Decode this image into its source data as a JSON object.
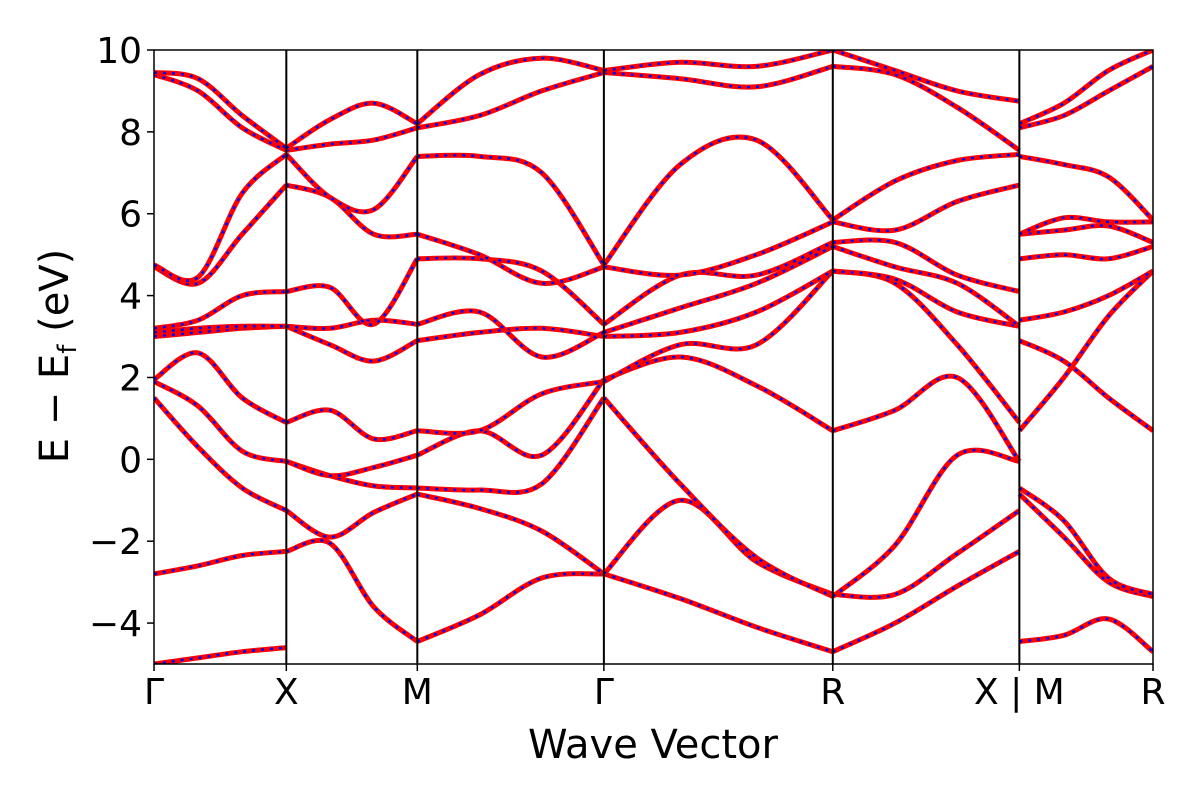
{
  "chart_data": {
    "type": "line",
    "title": "",
    "xlabel": "Wave Vector",
    "ylabel": {
      "prefix": "E − E",
      "subscript": "f",
      "suffix": " (eV)"
    },
    "ylim": [
      -5,
      10
    ],
    "yticks": [
      {
        "value": -4,
        "label": "−4"
      },
      {
        "value": -2,
        "label": "−2"
      },
      {
        "value": 0,
        "label": "0"
      },
      {
        "value": 2,
        "label": "2"
      },
      {
        "value": 4,
        "label": "4"
      },
      {
        "value": 6,
        "label": "6"
      },
      {
        "value": 8,
        "label": "8"
      },
      {
        "value": 10,
        "label": "10"
      }
    ],
    "k_range": [
      0,
      7.55
    ],
    "k_points": [
      {
        "label": "Γ",
        "k": 0.0
      },
      {
        "label": "X",
        "k": 1.0
      },
      {
        "label": "M",
        "k": 1.99
      },
      {
        "label": "Γ",
        "k": 3.4
      },
      {
        "label": "R",
        "k": 5.13
      },
      {
        "label": "X | M",
        "k": 6.54
      },
      {
        "label": "R",
        "k": 7.55
      }
    ],
    "grid": false,
    "legend": "none",
    "colors": {
      "series_a": "#ff0000",
      "series_b": "#0000ff",
      "kline": "#000000"
    },
    "segments": [
      {
        "k0": 0.0,
        "k1": 1.0,
        "bands": [
          [
            -5.0,
            -4.85,
            -4.7,
            -4.6
          ],
          [
            -2.8,
            -2.6,
            -2.35,
            -2.25
          ],
          [
            1.5,
            0.3,
            -0.7,
            -1.25
          ],
          [
            1.9,
            1.3,
            0.2,
            -0.05
          ],
          [
            1.95,
            2.6,
            1.5,
            0.9
          ],
          [
            3.0,
            3.1,
            3.2,
            3.25
          ],
          [
            3.1,
            3.2,
            3.25,
            3.25
          ],
          [
            3.2,
            3.4,
            4.0,
            4.1
          ],
          [
            4.7,
            4.3,
            5.5,
            6.7
          ],
          [
            4.75,
            4.45,
            6.5,
            7.45
          ],
          [
            9.4,
            9.0,
            8.1,
            7.55
          ],
          [
            9.45,
            9.3,
            8.4,
            7.6
          ]
        ]
      },
      {
        "k0": 1.0,
        "k1": 1.99,
        "bands": [
          [
            -2.25,
            -2.05,
            -3.6,
            -4.45
          ],
          [
            -1.25,
            -1.9,
            -1.3,
            -0.85
          ],
          [
            -0.05,
            -0.4,
            -0.65,
            -0.7
          ],
          [
            -0.05,
            -0.4,
            -0.2,
            0.1
          ],
          [
            0.9,
            1.2,
            0.5,
            0.7
          ],
          [
            3.25,
            2.8,
            2.4,
            2.9
          ],
          [
            3.25,
            3.2,
            3.4,
            3.3
          ],
          [
            4.1,
            4.2,
            3.3,
            4.9
          ],
          [
            6.7,
            6.4,
            5.5,
            5.5
          ],
          [
            7.45,
            6.4,
            6.1,
            7.4
          ],
          [
            7.55,
            7.7,
            7.8,
            8.1
          ],
          [
            7.6,
            8.3,
            8.7,
            8.2
          ]
        ]
      },
      {
        "k0": 1.99,
        "k1": 3.4,
        "bands": [
          [
            -4.45,
            -3.8,
            -2.9,
            -2.8
          ],
          [
            -0.85,
            -1.2,
            -1.75,
            -2.8
          ],
          [
            -0.7,
            -0.75,
            -0.6,
            1.5
          ],
          [
            0.1,
            0.7,
            0.1,
            1.95
          ],
          [
            0.7,
            0.7,
            1.6,
            1.9
          ],
          [
            2.9,
            3.1,
            3.2,
            3.0
          ],
          [
            3.3,
            3.6,
            2.5,
            3.1
          ],
          [
            4.9,
            4.9,
            4.6,
            3.3
          ],
          [
            5.5,
            5.0,
            4.3,
            4.7
          ],
          [
            7.4,
            7.4,
            7.0,
            4.75
          ],
          [
            8.1,
            8.4,
            9.0,
            9.45
          ],
          [
            8.2,
            9.4,
            9.8,
            9.5
          ]
        ]
      },
      {
        "k0": 3.4,
        "k1": 5.13,
        "bands": [
          [
            -2.8,
            -3.4,
            -4.1,
            -4.7
          ],
          [
            -2.8,
            -1.0,
            -2.5,
            -3.3
          ],
          [
            1.5,
            -0.6,
            -2.4,
            -3.35
          ],
          [
            1.95,
            2.5,
            1.8,
            0.7
          ],
          [
            1.9,
            2.8,
            2.8,
            4.6
          ],
          [
            3.0,
            3.1,
            3.6,
            4.6
          ],
          [
            3.1,
            3.7,
            4.3,
            5.2
          ],
          [
            3.3,
            4.5,
            4.5,
            5.3
          ],
          [
            4.7,
            4.5,
            5.0,
            5.8
          ],
          [
            4.75,
            7.2,
            7.8,
            5.85
          ],
          [
            9.45,
            9.3,
            9.1,
            9.6
          ],
          [
            9.5,
            9.7,
            9.6,
            10.0
          ]
        ]
      },
      {
        "k0": 5.13,
        "k1": 6.54,
        "bands": [
          [
            -4.7,
            -4.0,
            -3.1,
            -2.25
          ],
          [
            -3.3,
            -3.3,
            -2.3,
            -1.25
          ],
          [
            -3.35,
            -2.1,
            0.1,
            -0.05
          ],
          [
            0.7,
            1.2,
            2.0,
            -0.05
          ],
          [
            4.6,
            4.3,
            2.8,
            0.9
          ],
          [
            4.6,
            4.4,
            3.6,
            3.25
          ],
          [
            5.2,
            4.7,
            4.3,
            3.25
          ],
          [
            5.3,
            5.3,
            4.5,
            4.1
          ],
          [
            5.8,
            5.6,
            6.3,
            6.7
          ],
          [
            5.85,
            6.8,
            7.3,
            7.45
          ],
          [
            9.6,
            9.4,
            8.6,
            7.55
          ],
          [
            10.0,
            9.5,
            9.0,
            8.75
          ]
        ]
      },
      {
        "k0": 6.54,
        "k1": 7.55,
        "bands": [
          [
            -4.45,
            -4.3,
            -3.9,
            -4.7
          ],
          [
            -0.85,
            -1.9,
            -3.0,
            -3.35
          ],
          [
            -0.7,
            -1.5,
            -2.9,
            -3.3
          ],
          [
            0.7,
            2.0,
            3.5,
            4.6
          ],
          [
            2.9,
            2.4,
            1.5,
            0.7
          ],
          [
            3.4,
            3.6,
            4.0,
            4.6
          ],
          [
            4.9,
            5.0,
            4.9,
            5.2
          ],
          [
            5.5,
            5.6,
            5.7,
            5.3
          ],
          [
            5.5,
            5.9,
            5.8,
            5.8
          ],
          [
            7.4,
            7.2,
            6.9,
            5.85
          ],
          [
            8.1,
            8.4,
            9.0,
            9.6
          ],
          [
            8.2,
            8.7,
            9.5,
            10.0
          ]
        ]
      }
    ]
  }
}
